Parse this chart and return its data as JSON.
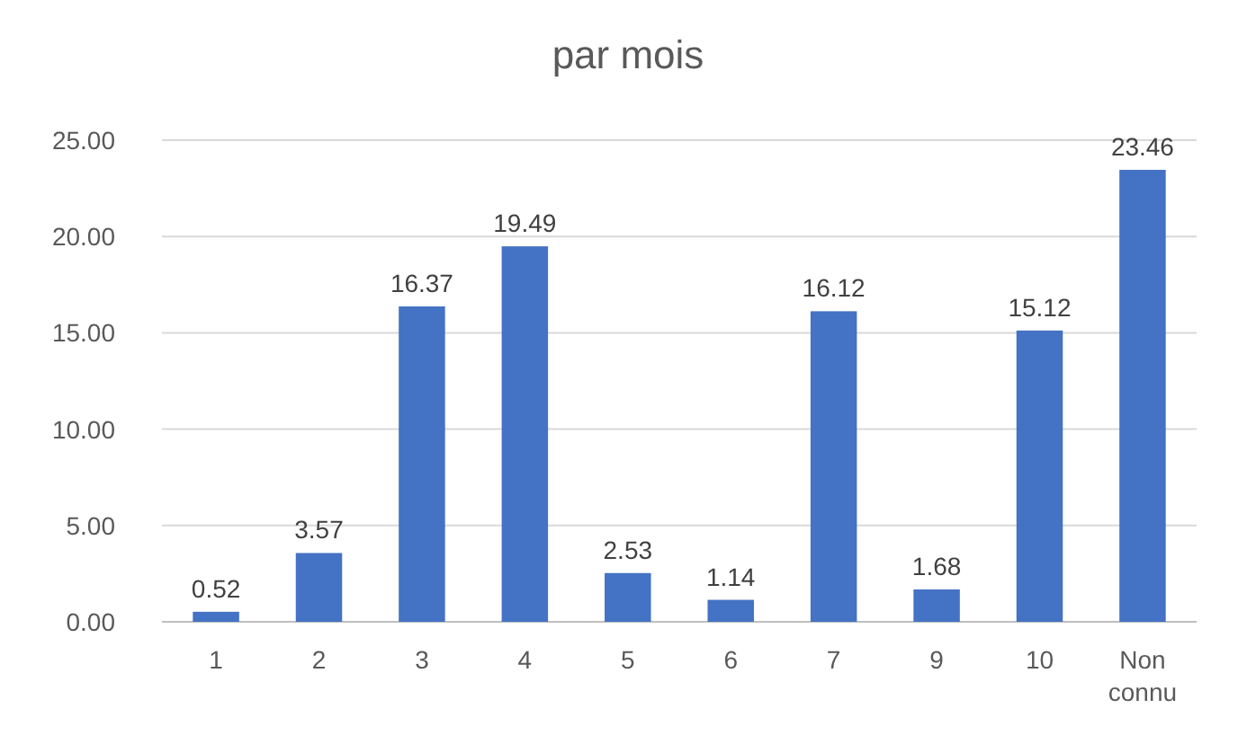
{
  "chart_data": {
    "type": "bar",
    "title": "par mois",
    "categories": [
      "1",
      "2",
      "3",
      "4",
      "5",
      "6",
      "7",
      "9",
      "10",
      "Non connu"
    ],
    "values": [
      0.52,
      3.57,
      16.37,
      19.49,
      2.53,
      1.14,
      16.12,
      1.68,
      15.12,
      23.46
    ],
    "color": "#4472c4",
    "ylim": [
      0,
      25
    ],
    "yticks": [
      {
        "value": 0,
        "label": "0.00"
      },
      {
        "value": 5,
        "label": "5.00"
      },
      {
        "value": 10,
        "label": "10.00"
      },
      {
        "value": 15,
        "label": "15.00"
      },
      {
        "value": 20,
        "label": "20.00"
      },
      {
        "value": 25,
        "label": "25.00"
      }
    ],
    "grid": "y",
    "data_labels": true
  }
}
